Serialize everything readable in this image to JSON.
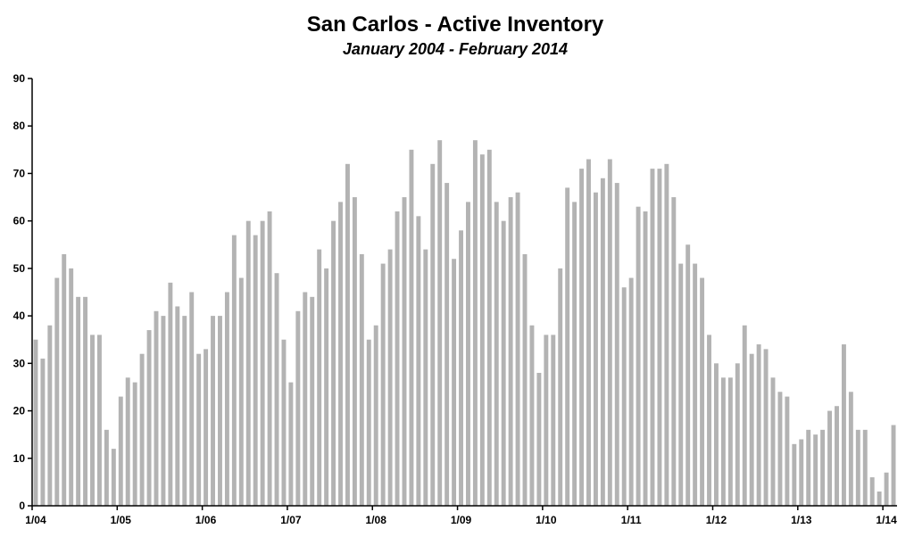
{
  "chart_data": {
    "type": "bar",
    "title": "San Carlos - Active Inventory",
    "subtitle": "January 2004 - February 2014",
    "xlabel": "",
    "ylabel": "",
    "ylim": [
      0,
      90
    ],
    "yticks": [
      0,
      10,
      20,
      30,
      40,
      50,
      60,
      70,
      80,
      90
    ],
    "xtick_labels": [
      "1/04",
      "1/05",
      "1/06",
      "1/07",
      "1/08",
      "1/09",
      "1/10",
      "1/11",
      "1/12",
      "1/13",
      "1/14"
    ],
    "grid": false,
    "bar_color": "#b3b3b3",
    "series": [
      {
        "values": [
          35,
          31,
          38,
          48,
          53,
          50,
          44,
          44,
          36,
          36,
          16,
          12,
          23,
          27,
          26,
          32,
          37,
          41,
          40,
          47,
          42,
          40,
          45,
          32,
          33,
          40,
          40,
          45,
          57,
          48,
          60,
          57,
          60,
          62,
          49,
          35,
          26,
          41,
          45,
          44,
          54,
          50,
          60,
          64,
          72,
          65,
          53,
          35,
          38,
          51,
          54,
          62,
          65,
          75,
          61,
          54,
          72,
          77,
          68,
          52,
          58,
          64,
          77,
          74,
          75,
          64,
          60,
          65,
          66,
          53,
          38,
          28,
          36,
          36,
          50,
          67,
          64,
          71,
          73,
          66,
          69,
          73,
          68,
          46,
          48,
          63,
          62,
          71,
          71,
          72,
          65,
          51,
          55,
          51,
          48,
          36,
          30,
          27,
          27,
          30,
          38,
          32,
          34,
          33,
          27,
          24,
          23,
          13,
          14,
          16,
          15,
          16,
          20,
          21,
          34,
          24,
          16,
          16,
          6,
          3,
          7,
          17
        ]
      }
    ]
  }
}
